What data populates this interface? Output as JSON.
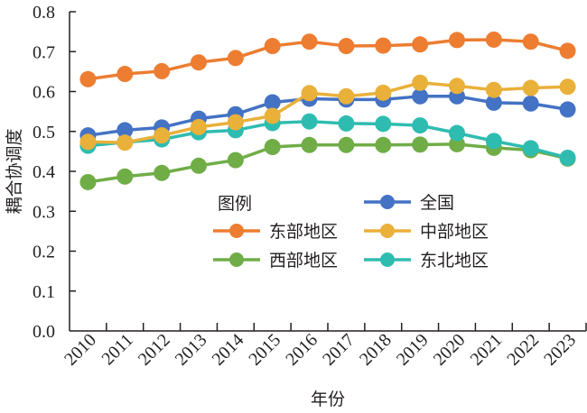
{
  "chart_data": {
    "type": "line",
    "title": "",
    "xlabel": "年份",
    "ylabel": "耦合协调度",
    "ylim": [
      0.0,
      0.8
    ],
    "yticks": [
      "0.0",
      "0.1",
      "0.2",
      "0.3",
      "0.4",
      "0.5",
      "0.6",
      "0.7",
      "0.8"
    ],
    "categories": [
      "2010",
      "2011",
      "2012",
      "2013",
      "2014",
      "2015",
      "2016",
      "2017",
      "2018",
      "2019",
      "2020",
      "2021",
      "2022",
      "2023"
    ],
    "grid": false,
    "legend_title": "图例",
    "legend_position": "center",
    "series": [
      {
        "name": "全国",
        "color": "#4472c4",
        "values": [
          0.49,
          0.503,
          0.51,
          0.532,
          0.543,
          0.573,
          0.582,
          0.58,
          0.58,
          0.588,
          0.588,
          0.572,
          0.57,
          0.555
        ]
      },
      {
        "name": "东部地区",
        "color": "#ed7d31",
        "values": [
          0.631,
          0.644,
          0.651,
          0.673,
          0.684,
          0.714,
          0.725,
          0.714,
          0.715,
          0.718,
          0.729,
          0.73,
          0.725,
          0.702
        ]
      },
      {
        "name": "中部地区",
        "color": "#e9b03a",
        "values": [
          0.474,
          0.472,
          0.49,
          0.511,
          0.523,
          0.539,
          0.596,
          0.588,
          0.597,
          0.622,
          0.614,
          0.604,
          0.609,
          0.612
        ]
      },
      {
        "name": "西部地区",
        "color": "#70ad47",
        "values": [
          0.373,
          0.387,
          0.396,
          0.414,
          0.428,
          0.461,
          0.466,
          0.466,
          0.466,
          0.467,
          0.468,
          0.459,
          0.453,
          0.432
        ]
      },
      {
        "name": "东北地区",
        "color": "#2fbcb0",
        "values": [
          0.464,
          0.473,
          0.48,
          0.498,
          0.503,
          0.521,
          0.525,
          0.52,
          0.519,
          0.515,
          0.496,
          0.476,
          0.458,
          0.434
        ]
      }
    ]
  }
}
